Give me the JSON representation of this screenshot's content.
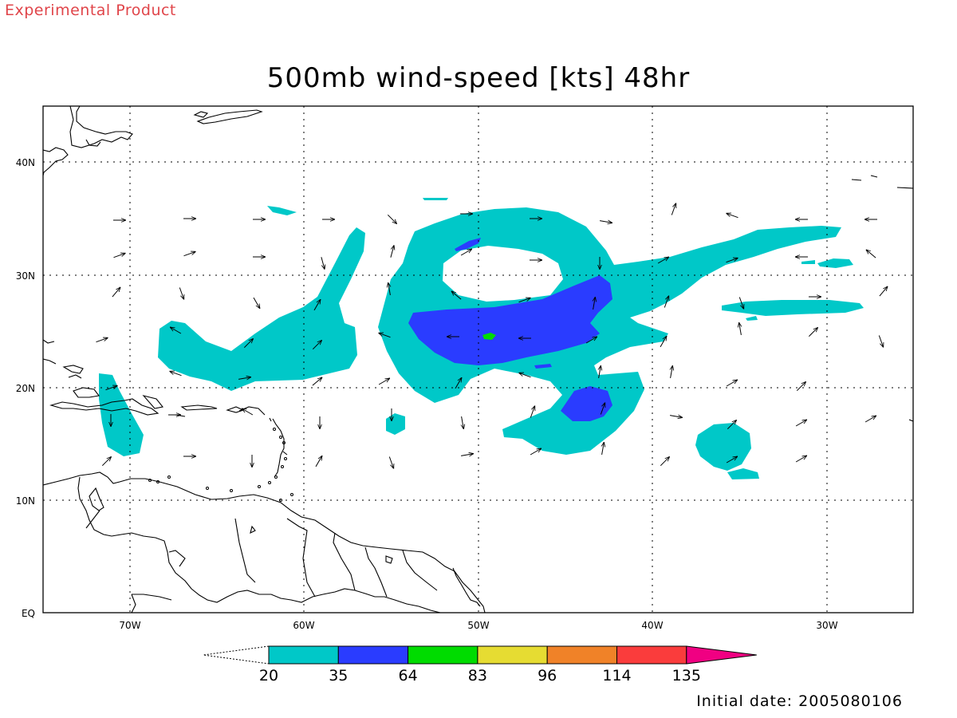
{
  "tag": "Experimental Product",
  "title": "500mb wind-speed [kts] 48hr",
  "footer": "Initial date: 2005080106",
  "map": {
    "lat_labels": [
      "40N",
      "30N",
      "20N",
      "10N",
      "EQ"
    ],
    "lon_labels": [
      "70W",
      "60W",
      "50W",
      "40W",
      "30W"
    ]
  },
  "legend": {
    "bins": [
      {
        "label": "20",
        "color": "#00c8c8"
      },
      {
        "label": "35",
        "color": "#2a3cff"
      },
      {
        "label": "64",
        "color": "#00dc00"
      },
      {
        "label": "83",
        "color": "#e6dc32"
      },
      {
        "label": "96",
        "color": "#f08228"
      },
      {
        "label": "114",
        "color": "#fa3c3c"
      },
      {
        "label": "135",
        "color": "#f00082"
      }
    ]
  }
}
